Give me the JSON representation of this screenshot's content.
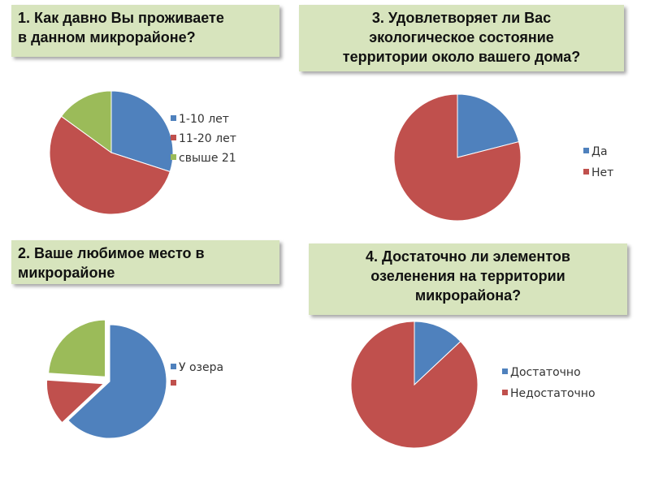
{
  "questions": {
    "q1": [
      "1. Как давно Вы проживаете",
      "в данном микрорайоне?"
    ],
    "q2": [
      "2. Ваше любимое место в",
      "микрорайоне"
    ],
    "q3": [
      "3. Удовлетворяет ли Вас",
      "экологическое состояние",
      "территории около вашего дома?"
    ],
    "q4": [
      "4. Достаточно ли элементов",
      "озеленения на территории",
      "микрорайона?"
    ]
  },
  "colors": {
    "blue": "#4f81bd",
    "red": "#c0504d",
    "green": "#9bbb59",
    "box": "#d7e4bd"
  },
  "chart_data": [
    {
      "type": "pie",
      "title": "1. Как давно Вы проживаете в данном микрорайоне?",
      "categories": [
        "1-10 лет",
        "11-20 лет",
        "свыше 21"
      ],
      "values": [
        30,
        55,
        15
      ],
      "legend": "right"
    },
    {
      "type": "pie",
      "title": "2. Ваше любимое место в микрорайоне",
      "categories": [
        "У озера",
        "",
        ""
      ],
      "values": [
        63,
        13,
        24
      ],
      "exploded": true,
      "legend": "right"
    },
    {
      "type": "pie",
      "title": "3. Удовлетворяет ли Вас экологическое состояние территории около вашего дома?",
      "categories": [
        "Да",
        "Нет"
      ],
      "values": [
        21,
        79
      ],
      "legend": "right"
    },
    {
      "type": "pie",
      "title": "4. Достаточно ли элементов озеленения на территории микрорайона?",
      "categories": [
        "Достаточно",
        "Недостаточно"
      ],
      "values": [
        13,
        87
      ],
      "legend": "right"
    }
  ]
}
